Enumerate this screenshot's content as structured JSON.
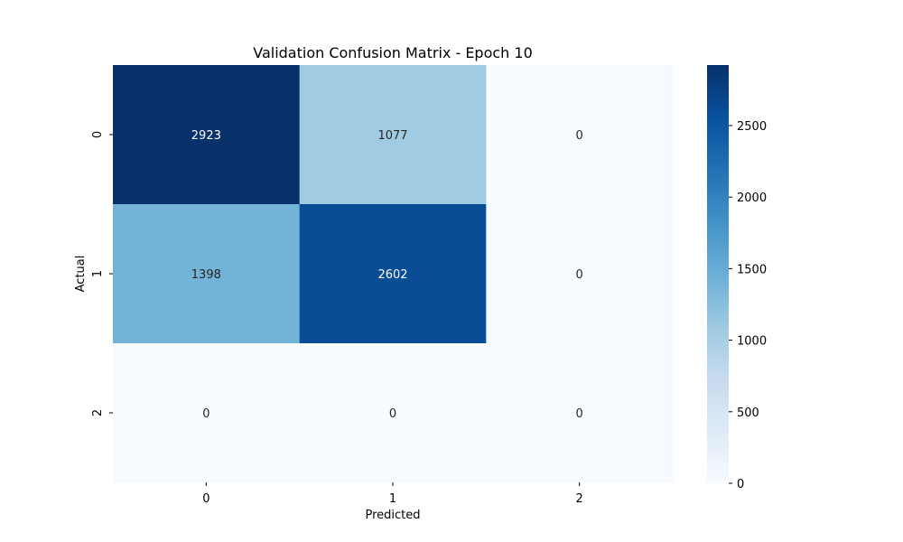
{
  "chart_data": {
    "type": "heatmap",
    "title": "Validation Confusion Matrix - Epoch 10",
    "xlabel": "Predicted",
    "ylabel": "Actual",
    "x_categories": [
      "0",
      "1",
      "2"
    ],
    "y_categories": [
      "0",
      "1",
      "2"
    ],
    "values": [
      [
        2923,
        1077,
        0
      ],
      [
        1398,
        2602,
        0
      ],
      [
        0,
        0,
        0
      ]
    ],
    "colormap": "Blues",
    "colorbar": {
      "range": [
        0,
        2923
      ],
      "ticks": [
        0,
        500,
        1000,
        1500,
        2000,
        2500
      ],
      "tick_labels": [
        "0",
        "500",
        "1000",
        "1500",
        "2000",
        "2500"
      ]
    },
    "grid": false
  }
}
